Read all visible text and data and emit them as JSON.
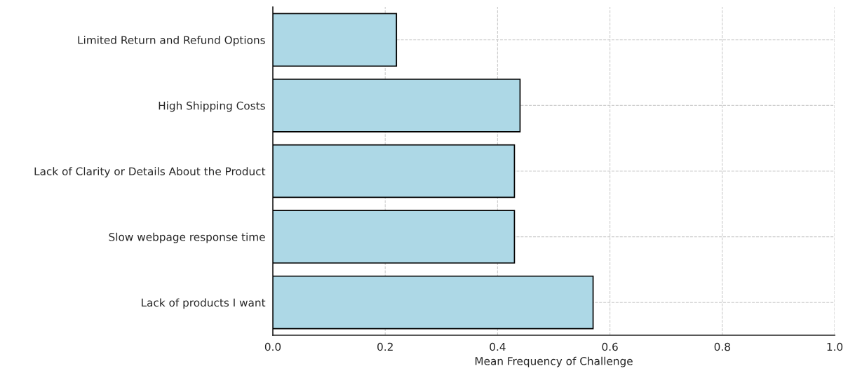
{
  "chart_data": {
    "type": "bar",
    "orientation": "horizontal",
    "xlabel": "Mean Frequency of Challenge",
    "categories": [
      "Limited Return and Refund Options",
      "High Shipping Costs",
      "Lack of Clarity or Details About the Product",
      "Slow webpage response time",
      "Lack of products I want"
    ],
    "values": [
      0.22,
      0.44,
      0.43,
      0.43,
      0.57
    ],
    "color": "#add8e6",
    "xlim": [
      0.0,
      1.0
    ],
    "xticks": [
      {
        "value": 0.0,
        "label": "0.0"
      },
      {
        "value": 0.2,
        "label": "0.2"
      },
      {
        "value": 0.4,
        "label": "0.4"
      },
      {
        "value": 0.6,
        "label": "0.6"
      },
      {
        "value": 0.8,
        "label": "0.8"
      },
      {
        "value": 1.0,
        "label": "1.0"
      }
    ],
    "grid": true
  }
}
